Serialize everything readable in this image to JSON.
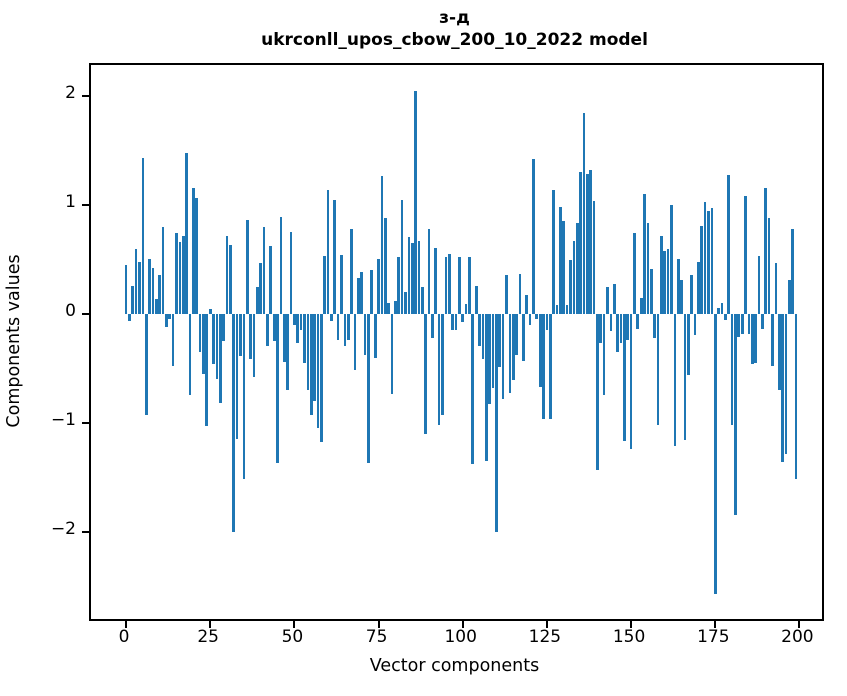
{
  "title": {
    "line1": "з-д",
    "line2": "ukrconll_upos_cbow_200_10_2022 model"
  },
  "axes": {
    "xlabel": "Vector components",
    "ylabel": "Components values",
    "x_tick_values": [
      0,
      25,
      50,
      75,
      100,
      125,
      150,
      175,
      200
    ],
    "x_tick_labels": [
      "0",
      "25",
      "50",
      "75",
      "100",
      "125",
      "150",
      "175",
      "200"
    ],
    "y_tick_values": [
      2,
      1,
      0,
      -1,
      -2
    ],
    "y_tick_labels": [
      "2",
      "1",
      "0",
      "−1",
      "−2"
    ]
  },
  "chart_data": {
    "type": "bar",
    "title": "з-д\nukrconll_upos_cbow_200_10_2022 model",
    "xlabel": "Vector components",
    "ylabel": "Components values",
    "x_start": 0,
    "x_end": 199,
    "bar_width_data_units": 0.8,
    "bar_color": "#1f77b4",
    "xlim": [
      -10.4,
      206.7
    ],
    "ylim": [
      -2.8,
      2.28
    ],
    "grid": false,
    "legend": "none",
    "values": [
      0.45,
      -0.07,
      0.25,
      0.59,
      0.47,
      1.43,
      -0.93,
      0.5,
      0.42,
      0.13,
      0.35,
      0.79,
      -0.12,
      -0.05,
      -0.48,
      0.74,
      0.66,
      0.71,
      1.47,
      -0.75,
      1.15,
      1.06,
      -0.35,
      -0.55,
      -1.03,
      0.04,
      -0.46,
      -0.6,
      -0.82,
      -0.25,
      0.71,
      0.63,
      -2.0,
      -1.15,
      -0.39,
      -1.52,
      0.86,
      -0.42,
      -0.58,
      0.24,
      0.46,
      0.79,
      -0.3,
      0.62,
      -0.25,
      -1.37,
      0.89,
      -0.44,
      -0.7,
      0.75,
      -0.1,
      -0.27,
      -0.15,
      -0.45,
      -0.7,
      -0.93,
      -0.8,
      -1.05,
      -1.18,
      0.53,
      1.13,
      -0.07,
      1.04,
      -0.24,
      0.54,
      -0.3,
      -0.24,
      0.78,
      -0.52,
      0.33,
      0.38,
      -0.38,
      -1.37,
      0.4,
      -0.41,
      0.5,
      1.26,
      0.88,
      0.1,
      -0.74,
      0.12,
      0.52,
      1.04,
      0.2,
      0.7,
      0.65,
      2.04,
      0.67,
      0.24,
      -1.1,
      0.78,
      -0.22,
      0.6,
      -1.02,
      -0.93,
      0.52,
      0.55,
      -0.15,
      -0.15,
      0.52,
      -0.08,
      0.09,
      0.52,
      -1.38,
      0.25,
      -0.3,
      -0.42,
      -1.35,
      -0.83,
      -0.68,
      -2.0,
      -0.49,
      -0.78,
      0.35,
      -0.73,
      -0.61,
      -0.38,
      0.36,
      -0.43,
      0.17,
      -0.1,
      1.42,
      -0.05,
      -0.67,
      -0.97,
      -0.15,
      -0.97,
      1.13,
      0.08,
      0.98,
      0.85,
      0.08,
      0.49,
      0.67,
      0.83,
      1.3,
      1.84,
      1.28,
      1.32,
      1.03,
      -1.43,
      -0.27,
      -0.75,
      0.24,
      -0.16,
      0.27,
      -0.35,
      -0.27,
      -1.17,
      -0.24,
      -1.24,
      0.74,
      -0.14,
      0.14,
      1.1,
      0.83,
      0.41,
      -0.22,
      -1.02,
      0.71,
      0.57,
      0.59,
      1.0,
      -1.21,
      0.5,
      0.31,
      -1.16,
      -0.56,
      0.35,
      -0.2,
      0.47,
      0.8,
      1.02,
      0.94,
      0.97,
      -2.57,
      0.05,
      0.1,
      -0.06,
      1.27,
      -1.02,
      -1.85,
      -0.21,
      -0.19,
      1.08,
      -0.19,
      -0.46,
      -0.45,
      0.53,
      -0.14,
      1.15,
      0.88,
      -0.48,
      0.46,
      -0.7,
      -1.36,
      -1.29,
      0.31,
      0.78,
      -1.52
    ]
  }
}
